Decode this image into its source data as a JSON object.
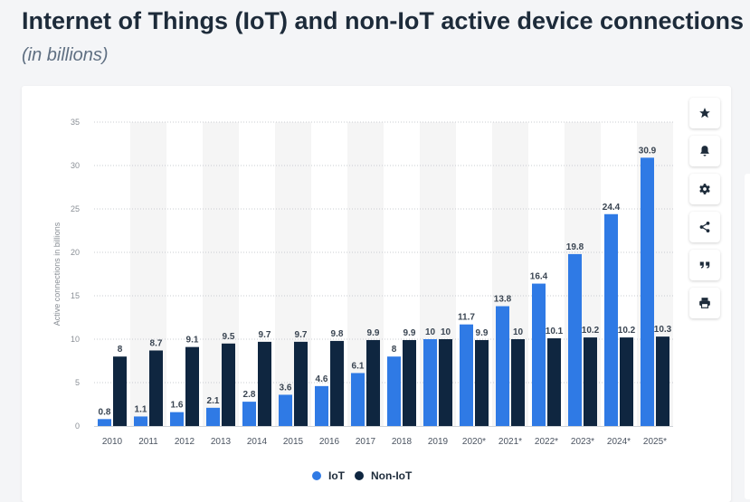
{
  "header": {
    "title": "Internet of Things (IoT) and non-IoT active device connections",
    "subtitle": "(in billions)"
  },
  "toolbar": [
    {
      "name": "star-icon"
    },
    {
      "name": "bell-icon"
    },
    {
      "name": "gear-icon"
    },
    {
      "name": "share-icon"
    },
    {
      "name": "quote-icon"
    },
    {
      "name": "print-icon"
    }
  ],
  "colors": {
    "iot": "#2f7ae5",
    "non_iot": "#0f2640",
    "band": "#f5f5f5"
  },
  "chart_data": {
    "type": "bar",
    "title": "Internet of Things (IoT) and non-IoT active device connections",
    "subtitle": "(in billions)",
    "xlabel": "",
    "ylabel": "Active connections in billions",
    "ylim": [
      0,
      35
    ],
    "yticks": [
      0,
      5,
      10,
      15,
      20,
      25,
      30,
      35
    ],
    "grid": true,
    "legend": "bottom",
    "categories": [
      "2010",
      "2011",
      "2012",
      "2013",
      "2014",
      "2015",
      "2016",
      "2017",
      "2018",
      "2019",
      "2020*",
      "2021*",
      "2022*",
      "2023*",
      "2024*",
      "2025*"
    ],
    "series": [
      {
        "name": "IoT",
        "values": [
          0.8,
          1.1,
          1.6,
          2.1,
          2.8,
          3.6,
          4.6,
          6.1,
          8,
          10,
          11.7,
          13.8,
          16.4,
          19.8,
          24.4,
          30.9
        ]
      },
      {
        "name": "Non-IoT",
        "values": [
          8,
          8.7,
          9.1,
          9.5,
          9.7,
          9.7,
          9.8,
          9.9,
          9.9,
          10,
          9.9,
          10,
          10.1,
          10.2,
          10.2,
          10.3
        ]
      }
    ]
  }
}
